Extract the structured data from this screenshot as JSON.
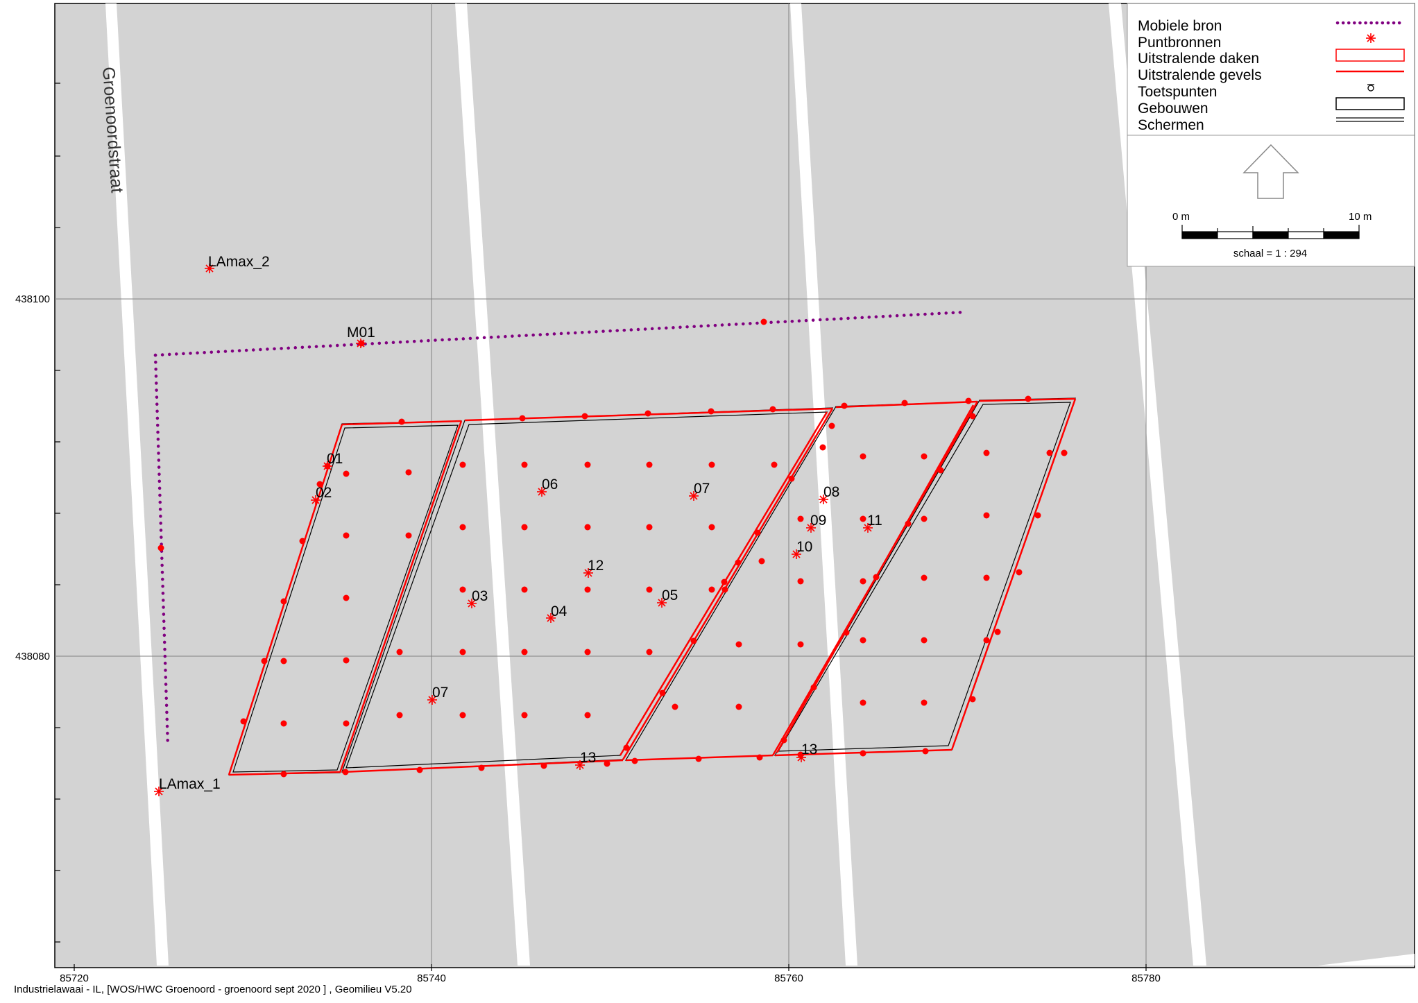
{
  "street_name": "Groenoordstraat",
  "axis": {
    "x_ticks": [
      "85720",
      "85740",
      "85760",
      "85780"
    ],
    "y_ticks": [
      "438100",
      "438080"
    ]
  },
  "legend": {
    "items": [
      {
        "label": "Mobiele bron",
        "icon": "dotted-line-icon"
      },
      {
        "label": "Puntbronnen",
        "icon": "asterisk-icon"
      },
      {
        "label": "Uitstralende daken",
        "icon": "red-rectangle-icon"
      },
      {
        "label": "Uitstralende gevels",
        "icon": "red-line-icon"
      },
      {
        "label": "Toetspunten",
        "icon": "receiver-icon"
      },
      {
        "label": "Gebouwen",
        "icon": "black-rectangle-icon"
      },
      {
        "label": "Schermen",
        "icon": "double-line-icon"
      }
    ],
    "scale_start": "0 m",
    "scale_end": "10 m",
    "scale_text": "schaal = 1 : 294"
  },
  "labels": {
    "lamax1": "LAmax_1",
    "lamax2": "LAmax_2",
    "m01": "M01",
    "p01": "01",
    "p02": "02",
    "p03": "03",
    "p04": "04",
    "p05": "05",
    "p06": "06",
    "p07a": "07",
    "p07b": "07",
    "p08": "08",
    "p09": "09",
    "p10": "10",
    "p11": "11",
    "p12": "12",
    "p13a": "13",
    "p13b": "13"
  },
  "colors": {
    "map_bg": "#d3d3d3",
    "road": "#ffffff",
    "source_red": "#ff0000",
    "mobile_purple": "#800080"
  },
  "footer": "Industrielawaai - IL, [WOS/HWC Groenoord - groenoord sept 2020 ] , Geomilieu V5.20"
}
